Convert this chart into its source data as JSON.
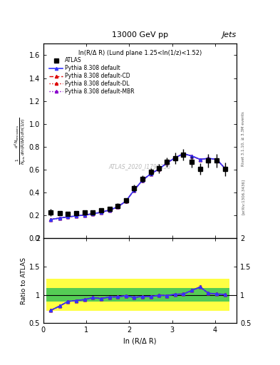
{
  "title": "13000 GeV pp",
  "title_right": "Jets",
  "subtitle": "ln(R/Δ R) (Lund plane 1.25<ln(1/z)<1.52)",
  "watermark": "ATLAS_2020_I1790256",
  "ylabel_main": "$\\frac{1}{N_{\\rm jets}}\\frac{d^2 N_{\\rm emissions}}{d\\ln(R/\\Delta R)\\,d\\ln(1/z)}$",
  "ylabel_ratio": "Ratio to ATLAS",
  "xlabel": "ln (R/Δ R)",
  "right_label": "Rivet 3.1.10, ≥ 3.3M events",
  "arxiv_label": "[arXiv:1306.3436]",
  "xlim": [
    0,
    4.5
  ],
  "ylim_main": [
    0,
    1.7
  ],
  "ylim_ratio": [
    0.5,
    2.0
  ],
  "atlas_x": [
    0.17,
    0.38,
    0.57,
    0.76,
    0.96,
    1.15,
    1.34,
    1.54,
    1.73,
    1.92,
    2.11,
    2.3,
    2.5,
    2.69,
    2.88,
    3.07,
    3.26,
    3.46,
    3.65,
    3.84,
    4.04,
    4.23
  ],
  "atlas_y": [
    0.228,
    0.222,
    0.213,
    0.218,
    0.224,
    0.226,
    0.244,
    0.258,
    0.285,
    0.33,
    0.44,
    0.52,
    0.582,
    0.61,
    0.668,
    0.698,
    0.73,
    0.668,
    0.605,
    0.68,
    0.68,
    0.605
  ],
  "atlas_yerr_low": [
    0.03,
    0.02,
    0.02,
    0.02,
    0.02,
    0.02,
    0.02,
    0.02,
    0.02,
    0.02,
    0.03,
    0.03,
    0.03,
    0.04,
    0.04,
    0.05,
    0.05,
    0.05,
    0.05,
    0.06,
    0.06,
    0.06
  ],
  "atlas_yerr_high": [
    0.03,
    0.02,
    0.02,
    0.02,
    0.02,
    0.02,
    0.02,
    0.02,
    0.02,
    0.02,
    0.03,
    0.03,
    0.03,
    0.04,
    0.04,
    0.05,
    0.05,
    0.05,
    0.05,
    0.06,
    0.06,
    0.06
  ],
  "pythia_x": [
    0.17,
    0.38,
    0.57,
    0.76,
    0.96,
    1.15,
    1.34,
    1.54,
    1.73,
    1.92,
    2.11,
    2.3,
    2.5,
    2.69,
    2.88,
    3.07,
    3.26,
    3.46,
    3.65,
    3.84,
    4.04,
    4.23
  ],
  "pythia_default_y": [
    0.165,
    0.178,
    0.188,
    0.196,
    0.205,
    0.215,
    0.228,
    0.248,
    0.275,
    0.325,
    0.42,
    0.505,
    0.565,
    0.605,
    0.66,
    0.705,
    0.74,
    0.72,
    0.69,
    0.7,
    0.69,
    0.61
  ],
  "pythia_cd_y": [
    0.165,
    0.178,
    0.188,
    0.196,
    0.205,
    0.215,
    0.228,
    0.248,
    0.275,
    0.325,
    0.42,
    0.505,
    0.565,
    0.605,
    0.66,
    0.705,
    0.74,
    0.72,
    0.69,
    0.7,
    0.69,
    0.61
  ],
  "pythia_dl_y": [
    0.165,
    0.178,
    0.188,
    0.196,
    0.205,
    0.215,
    0.228,
    0.248,
    0.275,
    0.325,
    0.42,
    0.505,
    0.565,
    0.605,
    0.66,
    0.705,
    0.74,
    0.72,
    0.69,
    0.7,
    0.69,
    0.61
  ],
  "pythia_mbr_y": [
    0.165,
    0.178,
    0.188,
    0.196,
    0.205,
    0.215,
    0.228,
    0.248,
    0.275,
    0.325,
    0.42,
    0.505,
    0.565,
    0.605,
    0.66,
    0.705,
    0.74,
    0.72,
    0.69,
    0.7,
    0.69,
    0.61
  ],
  "ratio_default": [
    0.724,
    0.802,
    0.882,
    0.899,
    0.916,
    0.951,
    0.934,
    0.961,
    0.965,
    0.985,
    0.954,
    0.971,
    0.97,
    0.992,
    0.987,
    1.01,
    1.014,
    1.078,
    1.14,
    1.029,
    1.015,
    1.008
  ],
  "ratio_cd": [
    0.724,
    0.802,
    0.882,
    0.899,
    0.916,
    0.951,
    0.934,
    0.961,
    0.965,
    0.985,
    0.954,
    0.971,
    0.97,
    0.992,
    0.987,
    1.01,
    1.014,
    1.078,
    1.14,
    1.029,
    1.015,
    1.008
  ],
  "ratio_dl": [
    0.724,
    0.802,
    0.882,
    0.899,
    0.916,
    0.951,
    0.934,
    0.961,
    0.965,
    0.985,
    0.954,
    0.971,
    0.97,
    0.992,
    0.987,
    1.01,
    1.014,
    1.078,
    1.14,
    1.029,
    1.015,
    1.008
  ],
  "ratio_mbr": [
    0.724,
    0.802,
    0.882,
    0.899,
    0.916,
    0.951,
    0.934,
    0.961,
    0.965,
    0.985,
    0.954,
    0.971,
    0.97,
    0.992,
    0.987,
    1.01,
    1.014,
    1.078,
    1.14,
    1.029,
    1.015,
    1.008
  ],
  "band_x_edges": [
    0.075,
    0.275,
    0.475,
    0.665,
    0.86,
    1.055,
    1.245,
    1.44,
    1.63,
    1.825,
    2.015,
    2.205,
    2.4,
    2.595,
    2.785,
    2.975,
    3.165,
    3.36,
    3.555,
    3.745,
    3.94,
    4.135,
    4.325
  ],
  "band_yellow_low": 0.72,
  "band_yellow_high": 1.28,
  "band_green_low": 0.88,
  "band_green_high": 1.12,
  "color_default": "#3333ff",
  "color_cd": "#dd0000",
  "color_dl": "#dd0000",
  "color_mbr": "#8800cc",
  "color_atlas": "#000000",
  "legend_entries": [
    "ATLAS",
    "Pythia 8.308 default",
    "Pythia 8.308 default-CD",
    "Pythia 8.308 default-DL",
    "Pythia 8.308 default-MBR"
  ]
}
